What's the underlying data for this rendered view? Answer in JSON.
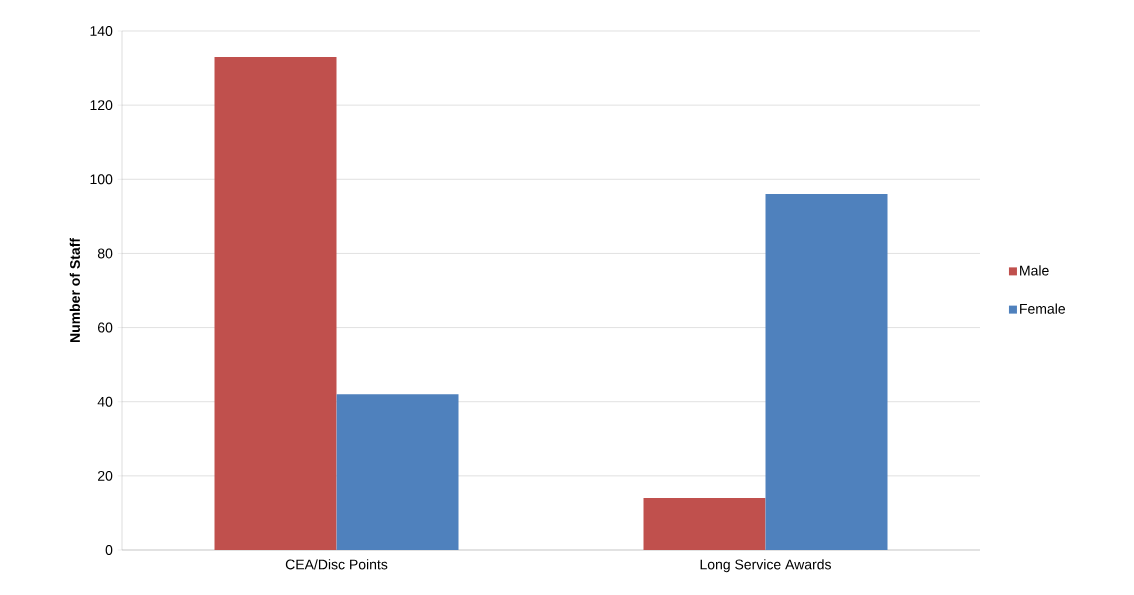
{
  "chart_data": {
    "type": "bar",
    "ylabel": "Number of Staff",
    "categories": [
      "CEA/Disc Points",
      "Long Service Awards"
    ],
    "series": [
      {
        "name": "Male",
        "color": "#c0504d",
        "values": [
          133,
          14
        ]
      },
      {
        "name": "Female",
        "color": "#4f81bd",
        "values": [
          42,
          96
        ]
      }
    ],
    "ylim": [
      0,
      140
    ],
    "yticks": [
      0,
      20,
      40,
      60,
      80,
      100,
      120,
      140
    ],
    "grid": "y",
    "legend": "right"
  }
}
